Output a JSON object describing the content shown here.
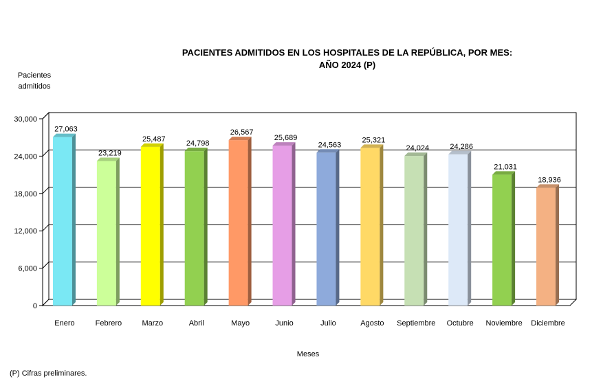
{
  "chart_data": {
    "type": "bar",
    "title": "PACIENTES ADMITIDOS EN LOS HOSPITALES DE LA REPÚBLICA, POR MES:",
    "subtitle": "AÑO 2024 (P)",
    "ylabel_line1": "Pacientes",
    "ylabel_line2": "admitidos",
    "xlabel": "Meses",
    "ylim": [
      0,
      30000
    ],
    "yticks": [
      "0",
      "6,000",
      "12,000",
      "18,000",
      "24,000",
      "30,000"
    ],
    "ytick_values": [
      0,
      6000,
      12000,
      18000,
      24000,
      30000
    ],
    "grid": true,
    "categories": [
      "Enero",
      "Febrero",
      "Marzo",
      "Abril",
      "Mayo",
      "Junio",
      "Julio",
      "Agosto",
      "Septiembre",
      "Octubre",
      "Noviembre",
      "Diciembre"
    ],
    "values": [
      27063,
      23219,
      25487,
      24798,
      26567,
      25689,
      24563,
      25321,
      24024,
      24286,
      21031,
      18936
    ],
    "value_labels": [
      "27,063",
      "23,219",
      "25,487",
      "24,798",
      "26,567",
      "25,689",
      "24,563",
      "25,321",
      "24,024",
      "24,286",
      "21,031",
      "18,936"
    ],
    "colors": [
      "#7ae8f4",
      "#ccff99",
      "#ffff00",
      "#92d050",
      "#ff9966",
      "#e69ee6",
      "#8eaadb",
      "#ffd966",
      "#c6e0b4",
      "#dde9f8",
      "#92d050",
      "#f4b183"
    ]
  },
  "footnote": "(P) Cifras preliminares."
}
